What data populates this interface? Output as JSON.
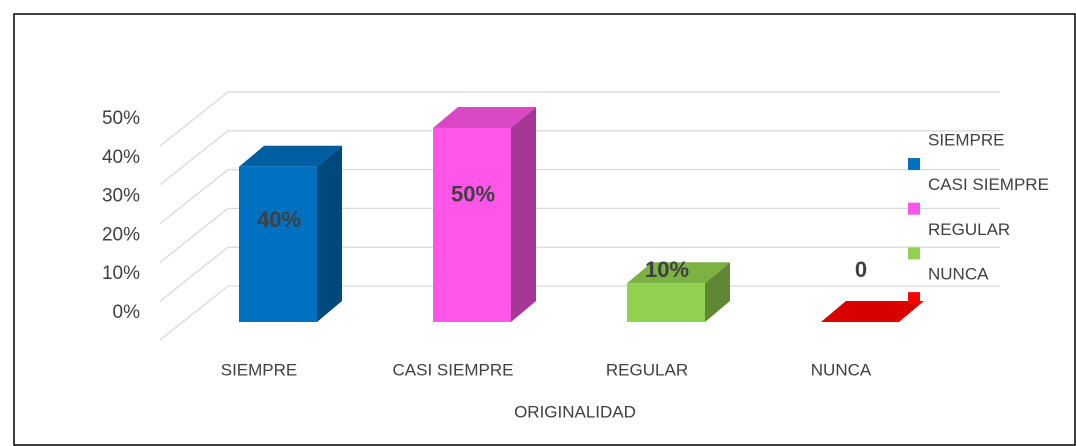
{
  "chart_data": {
    "type": "bar3d",
    "categories": [
      "SIEMPRE",
      "CASI SIEMPRE",
      "REGULAR",
      "NUNCA"
    ],
    "values": [
      40,
      50,
      10,
      0
    ],
    "value_labels": [
      "40%",
      "50%",
      "10%",
      "0"
    ],
    "colors": [
      "#0070c0",
      "#ff55e8",
      "#92d050",
      "#ff0000"
    ],
    "xlabel": "ORIGINALIDAD",
    "ylim": [
      0,
      50
    ],
    "yticks": [
      {
        "value": 0,
        "label": "0%"
      },
      {
        "value": 10,
        "label": "10%"
      },
      {
        "value": 20,
        "label": "20%"
      },
      {
        "value": 30,
        "label": "30%"
      },
      {
        "value": 40,
        "label": "40%"
      },
      {
        "value": 50,
        "label": "50%"
      }
    ],
    "grid": true,
    "legend": "right"
  }
}
